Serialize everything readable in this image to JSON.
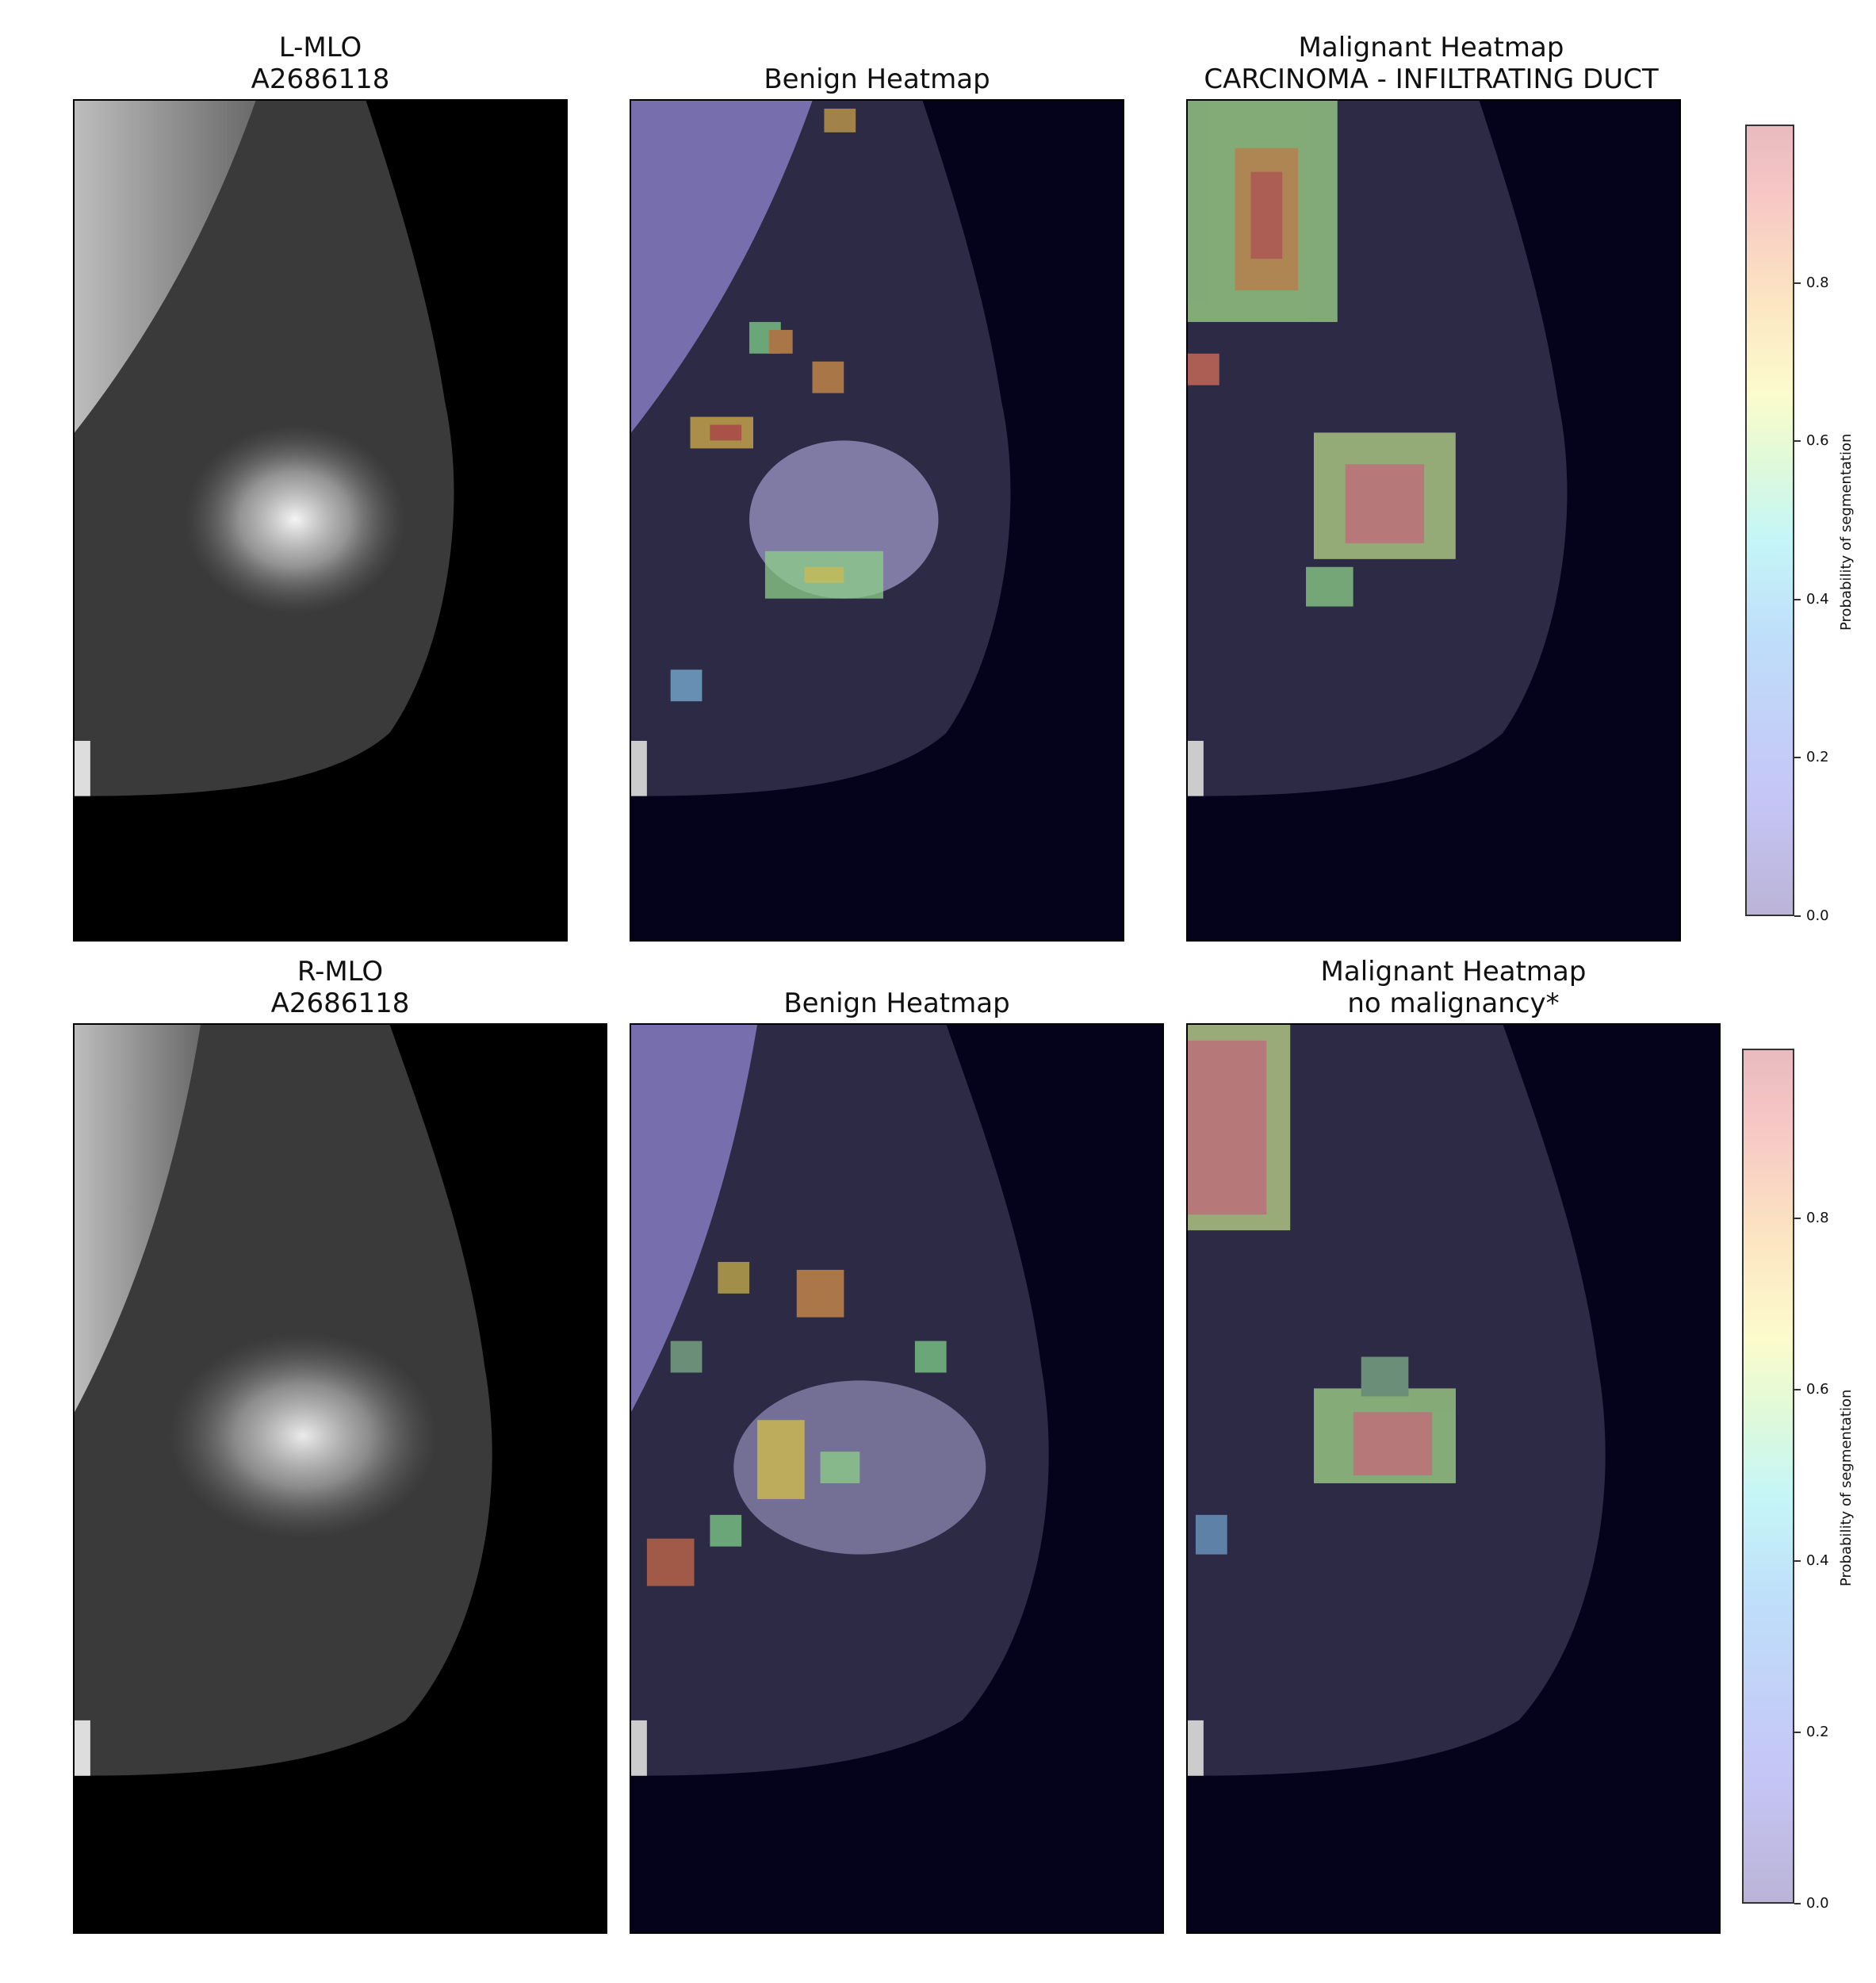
{
  "titles": {
    "row1_col1": [
      "L-MLO",
      "A2686118"
    ],
    "row1_col2": [
      "Benign Heatmap"
    ],
    "row1_col3": [
      "Malignant Heatmap",
      "CARCINOMA - INFILTRATING DUCT"
    ],
    "row2_col1": [
      "R-MLO",
      "A2686118"
    ],
    "row2_col2": [
      "Benign Heatmap"
    ],
    "row2_col3": [
      "Malignant Heatmap",
      "no malignancy*"
    ]
  },
  "colorbar": {
    "label": "Probability of segmentation",
    "ticks": [
      "0.0",
      "0.2",
      "0.4",
      "0.6",
      "0.8"
    ]
  }
}
